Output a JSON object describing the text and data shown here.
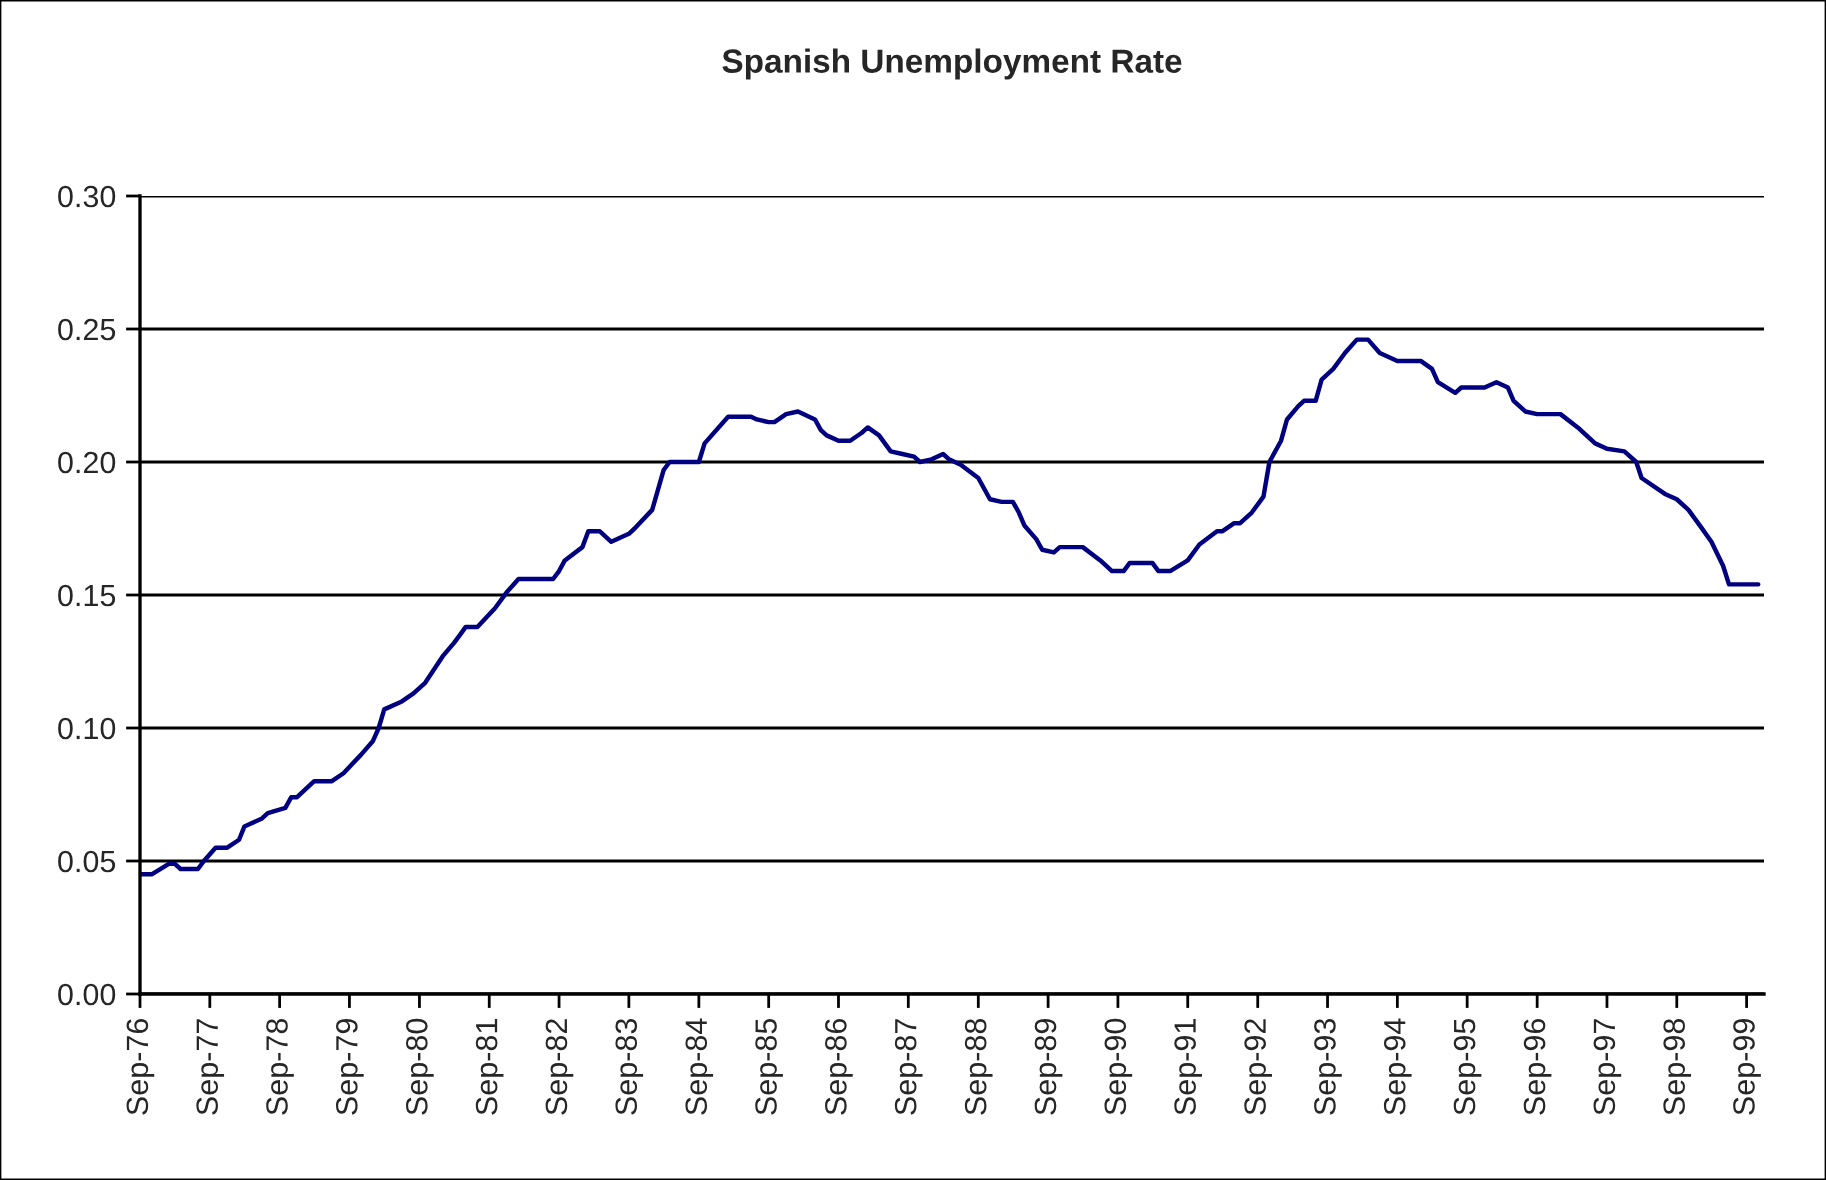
{
  "chart_data": {
    "type": "line",
    "title": "Spanish Unemployment Rate",
    "x": [
      "1976-09",
      "1976-11",
      "1977-02",
      "1977-03",
      "1977-04",
      "1977-07",
      "1977-08",
      "1977-10",
      "1977-12",
      "1978-02",
      "1978-03",
      "1978-04",
      "1978-06",
      "1978-07",
      "1978-10",
      "1978-11",
      "1978-12",
      "1979-03",
      "1979-06",
      "1979-08",
      "1979-11",
      "1980-01",
      "1980-02",
      "1980-03",
      "1980-06",
      "1980-08",
      "1980-10",
      "1981-01",
      "1981-03",
      "1981-04",
      "1981-05",
      "1981-07",
      "1981-10",
      "1981-12",
      "1982-02",
      "1982-08",
      "1982-09",
      "1982-10",
      "1983-01",
      "1983-02",
      "1983-04",
      "1983-06",
      "1983-09",
      "1983-10",
      "1984-01",
      "1984-03",
      "1984-04",
      "1984-09",
      "1984-10",
      "1985-02",
      "1985-06",
      "1985-07",
      "1985-09",
      "1985-10",
      "1985-12",
      "1986-02",
      "1986-05",
      "1986-06",
      "1986-07",
      "1986-09",
      "1986-11",
      "1987-01",
      "1987-02",
      "1987-04",
      "1987-06",
      "1987-08",
      "1987-10",
      "1987-11",
      "1988-01",
      "1988-03",
      "1988-04",
      "1988-06",
      "1988-09",
      "1988-11",
      "1989-01",
      "1989-03",
      "1989-04",
      "1989-05",
      "1989-07",
      "1989-08",
      "1989-10",
      "1989-11",
      "1990-03",
      "1990-06",
      "1990-08",
      "1990-10",
      "1990-11",
      "1991-03",
      "1991-04",
      "1991-06",
      "1991-09",
      "1991-11",
      "1992-02",
      "1992-03",
      "1992-05",
      "1992-06",
      "1992-08",
      "1992-10",
      "1992-11",
      "1993-01",
      "1993-02",
      "1993-04",
      "1993-05",
      "1993-07",
      "1993-08",
      "1993-10",
      "1993-12",
      "1994-02",
      "1994-04",
      "1994-06",
      "1994-09",
      "1995-01",
      "1995-03",
      "1995-04",
      "1995-07",
      "1995-08",
      "1995-12",
      "1996-02",
      "1996-04",
      "1996-05",
      "1996-07",
      "1996-09",
      "1997-01",
      "1997-04",
      "1997-07",
      "1997-09",
      "1997-12",
      "1998-02",
      "1998-03",
      "1998-07",
      "1998-09",
      "1998-11",
      "1999-01",
      "1999-03",
      "1999-05",
      "1999-06",
      "1999-11"
    ],
    "series": [
      {
        "color": "#000080",
        "values": [
          0.045,
          0.045,
          0.049,
          0.049,
          0.047,
          0.047,
          0.05,
          0.055,
          0.055,
          0.058,
          0.063,
          0.064,
          0.066,
          0.068,
          0.07,
          0.074,
          0.074,
          0.08,
          0.08,
          0.083,
          0.09,
          0.095,
          0.1,
          0.107,
          0.11,
          0.113,
          0.117,
          0.127,
          0.132,
          0.135,
          0.138,
          0.138,
          0.145,
          0.151,
          0.156,
          0.156,
          0.159,
          0.163,
          0.168,
          0.174,
          0.174,
          0.17,
          0.173,
          0.175,
          0.182,
          0.197,
          0.2,
          0.2,
          0.207,
          0.217,
          0.217,
          0.216,
          0.215,
          0.215,
          0.218,
          0.219,
          0.216,
          0.212,
          0.21,
          0.208,
          0.208,
          0.211,
          0.213,
          0.21,
          0.204,
          0.203,
          0.202,
          0.2,
          0.201,
          0.203,
          0.201,
          0.199,
          0.194,
          0.186,
          0.185,
          0.185,
          0.181,
          0.176,
          0.171,
          0.167,
          0.166,
          0.168,
          0.168,
          0.163,
          0.159,
          0.159,
          0.162,
          0.162,
          0.159,
          0.159,
          0.163,
          0.169,
          0.174,
          0.174,
          0.177,
          0.177,
          0.181,
          0.187,
          0.2,
          0.208,
          0.216,
          0.221,
          0.223,
          0.223,
          0.231,
          0.235,
          0.241,
          0.246,
          0.246,
          0.241,
          0.238,
          0.238,
          0.235,
          0.23,
          0.226,
          0.228,
          0.228,
          0.23,
          0.228,
          0.223,
          0.219,
          0.218,
          0.218,
          0.213,
          0.207,
          0.205,
          0.204,
          0.2,
          0.194,
          0.188,
          0.186,
          0.182,
          0.176,
          0.17,
          0.161,
          0.154,
          0.154
        ]
      }
    ],
    "xlim": [
      "1976-09",
      "1999-12"
    ],
    "xticks": [
      {
        "value": "1976-09",
        "label": "Sep-76"
      },
      {
        "value": "1977-09",
        "label": "Sep-77"
      },
      {
        "value": "1978-09",
        "label": "Sep-78"
      },
      {
        "value": "1979-09",
        "label": "Sep-79"
      },
      {
        "value": "1980-09",
        "label": "Sep-80"
      },
      {
        "value": "1981-09",
        "label": "Sep-81"
      },
      {
        "value": "1982-09",
        "label": "Sep-82"
      },
      {
        "value": "1983-09",
        "label": "Sep-83"
      },
      {
        "value": "1984-09",
        "label": "Sep-84"
      },
      {
        "value": "1985-09",
        "label": "Sep-85"
      },
      {
        "value": "1986-09",
        "label": "Sep-86"
      },
      {
        "value": "1987-09",
        "label": "Sep-87"
      },
      {
        "value": "1988-09",
        "label": "Sep-88"
      },
      {
        "value": "1989-09",
        "label": "Sep-89"
      },
      {
        "value": "1990-09",
        "label": "Sep-90"
      },
      {
        "value": "1991-09",
        "label": "Sep-91"
      },
      {
        "value": "1992-09",
        "label": "Sep-92"
      },
      {
        "value": "1993-09",
        "label": "Sep-93"
      },
      {
        "value": "1994-09",
        "label": "Sep-94"
      },
      {
        "value": "1995-09",
        "label": "Sep-95"
      },
      {
        "value": "1996-09",
        "label": "Sep-96"
      },
      {
        "value": "1997-09",
        "label": "Sep-97"
      },
      {
        "value": "1998-09",
        "label": "Sep-98"
      },
      {
        "value": "1999-09",
        "label": "Sep-99"
      }
    ],
    "ylim": [
      0,
      0.3
    ],
    "yticks": [
      {
        "value": 0,
        "label": "0.00"
      },
      {
        "value": 0.05,
        "label": "0.05"
      },
      {
        "value": 0.1,
        "label": "0.10"
      },
      {
        "value": 0.15,
        "label": "0.15"
      },
      {
        "value": 0.2,
        "label": "0.20"
      },
      {
        "value": 0.25,
        "label": "0.25"
      },
      {
        "value": 0.3,
        "label": "0.30"
      }
    ],
    "grid": "y"
  }
}
